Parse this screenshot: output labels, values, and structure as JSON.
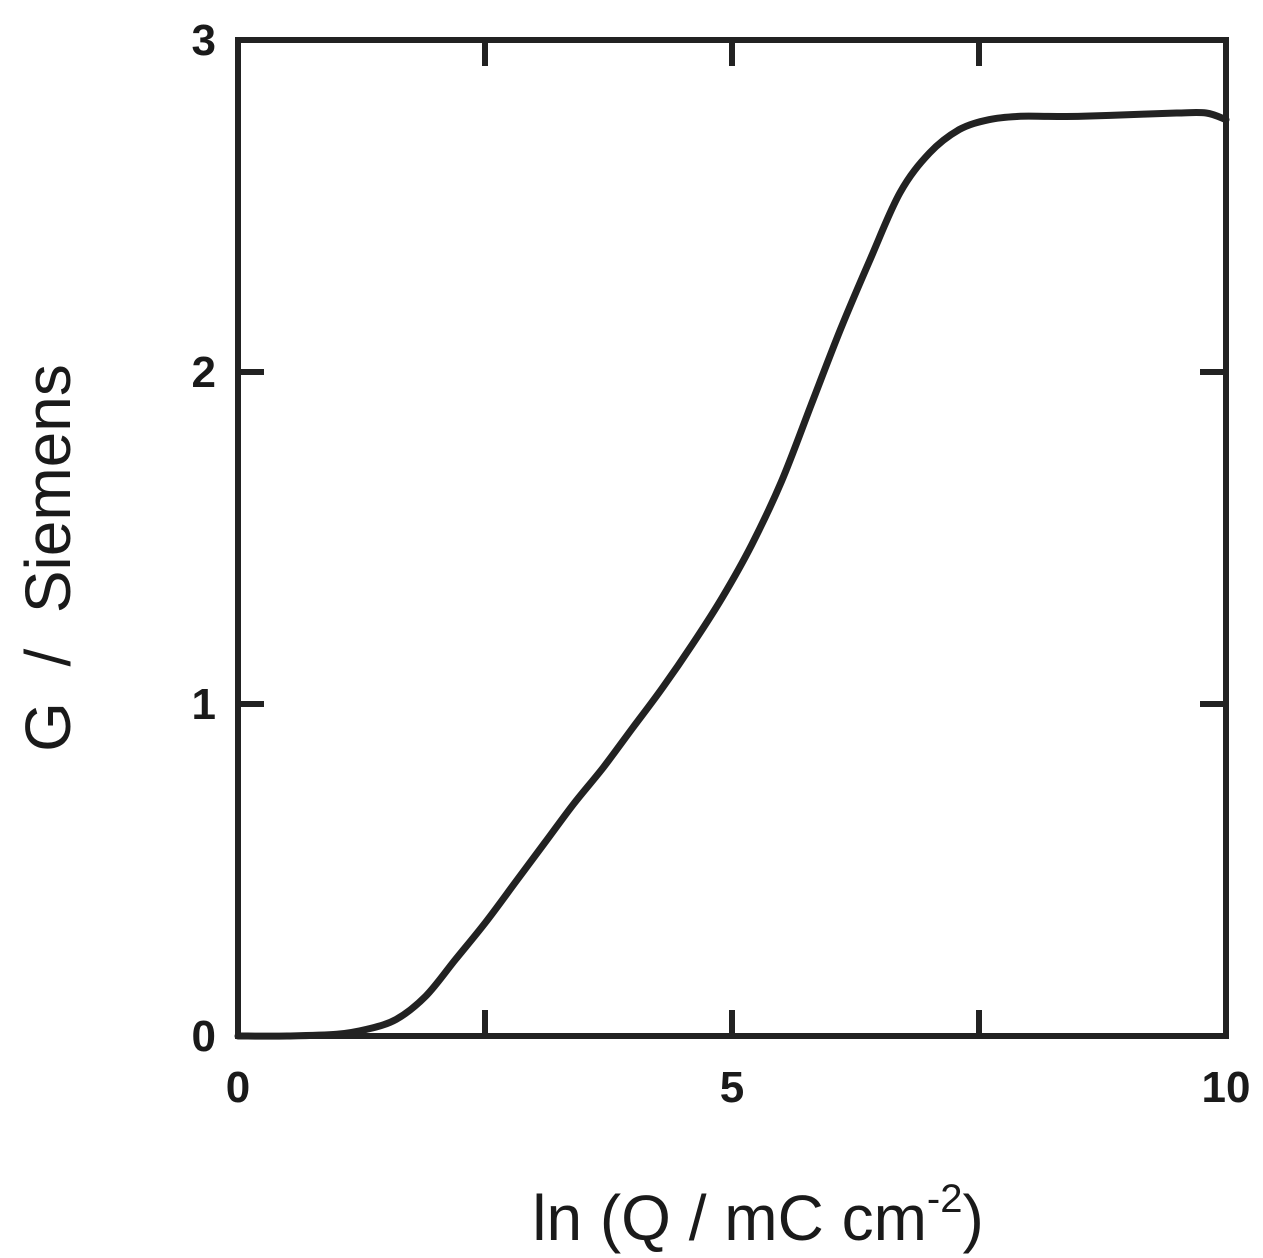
{
  "chart_data": {
    "type": "line",
    "xlabel": "ln (Q / mC cm",
    "xlabel_sup": "-2",
    "xlabel_tail": ")",
    "ylabel": "G  /  Siemens",
    "xlim": [
      0,
      10
    ],
    "ylim": [
      0,
      3
    ],
    "x_ticks": [
      0,
      5,
      10
    ],
    "x_minor_ticks": [
      2.5,
      7.5
    ],
    "y_ticks": [
      0,
      1,
      2,
      3
    ],
    "grid": false,
    "series": [
      {
        "color": "#222222",
        "x": [
          0,
          0.5,
          1.0,
          1.3,
          1.6,
          1.9,
          2.2,
          2.5,
          2.8,
          3.1,
          3.4,
          3.7,
          4.0,
          4.3,
          4.6,
          4.9,
          5.2,
          5.5,
          5.8,
          6.1,
          6.4,
          6.7,
          7.0,
          7.3,
          7.6,
          7.9,
          8.2,
          8.5,
          9.0,
          9.5,
          9.8,
          10.0
        ],
        "y": [
          0.0,
          0.0,
          0.005,
          0.02,
          0.05,
          0.12,
          0.23,
          0.34,
          0.46,
          0.58,
          0.7,
          0.81,
          0.93,
          1.05,
          1.18,
          1.32,
          1.48,
          1.67,
          1.9,
          2.13,
          2.34,
          2.54,
          2.66,
          2.73,
          2.76,
          2.77,
          2.77,
          2.77,
          2.775,
          2.78,
          2.78,
          2.76
        ]
      }
    ]
  }
}
